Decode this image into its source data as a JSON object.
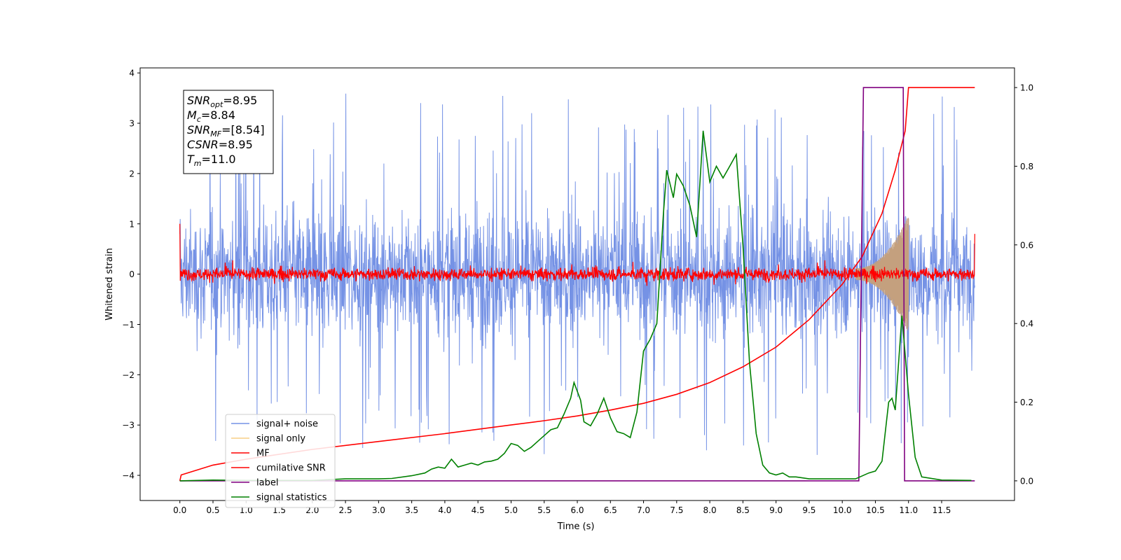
{
  "chart_data": {
    "type": "line",
    "xlabel": "Time (s)",
    "ylabel": "Whitened strain",
    "xlim": [
      -0.6,
      12.6
    ],
    "ylim_left": [
      -4.5,
      4.1
    ],
    "ylim_right": [
      -0.05,
      1.05
    ],
    "x_ticks": [
      "0.0",
      "0.5",
      "1.0",
      "1.5",
      "2.0",
      "2.5",
      "3.0",
      "3.5",
      "4.0",
      "4.5",
      "5.0",
      "5.5",
      "6.0",
      "6.5",
      "7.0",
      "7.5",
      "8.0",
      "8.5",
      "9.0",
      "9.5",
      "10.0",
      "10.5",
      "11.0",
      "11.5"
    ],
    "y_left_ticks": [
      "4",
      "3",
      "2",
      "1",
      "0",
      "−1",
      "−2",
      "−3",
      "−4"
    ],
    "y_right_ticks": [
      "1.0",
      "0.8",
      "0.6",
      "0.4",
      "0.2",
      "0.0"
    ],
    "legend_position": "lower-left",
    "colors": {
      "signal_noise": "#7592e5",
      "signal_only": "#f8cf85",
      "mf": "#ff0000",
      "cumulative_snr": "#ff0000",
      "label": "#800080",
      "signal_statistics": "#008000",
      "overlap": "#c4a07e"
    },
    "series": [
      {
        "name": "signal+ noise",
        "axis": "left",
        "type": "noise",
        "x_range": [
          0.0,
          12.0
        ],
        "amplitude_typical": 1.0,
        "amplitude_peak": 3.7
      },
      {
        "name": "signal only",
        "axis": "left",
        "type": "chirp",
        "x_range": [
          10.2,
          11.0
        ],
        "amplitude_end": 1.05
      },
      {
        "name": "MF",
        "axis": "left",
        "type": "noise",
        "x_range": [
          0.0,
          12.0
        ],
        "amplitude_typical": 0.15,
        "edge_values": [
          1.0,
          0.8
        ]
      },
      {
        "name": "cumilative SNR",
        "axis": "right",
        "x": [
          0.0,
          0.02,
          0.5,
          1.0,
          2.0,
          3.0,
          4.0,
          5.0,
          5.5,
          6.0,
          6.5,
          7.0,
          7.5,
          8.0,
          8.5,
          9.0,
          9.5,
          10.0,
          10.3,
          10.6,
          10.8,
          10.95,
          11.0,
          12.0
        ],
        "values": [
          0.0,
          0.015,
          0.04,
          0.055,
          0.08,
          0.1,
          0.12,
          0.142,
          0.153,
          0.165,
          0.18,
          0.197,
          0.22,
          0.25,
          0.29,
          0.34,
          0.41,
          0.5,
          0.57,
          0.68,
          0.79,
          0.89,
          1.0,
          1.0
        ]
      },
      {
        "name": "label",
        "axis": "right",
        "x": [
          0.0,
          10.25,
          10.32,
          10.92,
          10.94,
          12.0
        ],
        "values": [
          0.0,
          0.0,
          1.0,
          1.0,
          0.0,
          0.0
        ]
      },
      {
        "name": "signal statistics",
        "axis": "right",
        "x": [
          0.0,
          0.5,
          1.0,
          2.0,
          2.5,
          3.0,
          3.2,
          3.5,
          3.7,
          3.8,
          3.9,
          4.0,
          4.1,
          4.2,
          4.3,
          4.4,
          4.5,
          4.6,
          4.7,
          4.8,
          4.9,
          5.0,
          5.1,
          5.2,
          5.3,
          5.4,
          5.5,
          5.6,
          5.7,
          5.8,
          5.9,
          5.95,
          6.05,
          6.1,
          6.2,
          6.3,
          6.4,
          6.5,
          6.6,
          6.7,
          6.8,
          6.9,
          7.0,
          7.1,
          7.2,
          7.3,
          7.35,
          7.45,
          7.5,
          7.6,
          7.7,
          7.8,
          7.9,
          8.0,
          8.1,
          8.2,
          8.3,
          8.4,
          8.5,
          8.6,
          8.7,
          8.8,
          8.9,
          9.0,
          9.1,
          9.2,
          9.3,
          9.5,
          10.0,
          10.2,
          10.4,
          10.5,
          10.6,
          10.7,
          10.75,
          10.8,
          10.9,
          11.0,
          11.1,
          11.2,
          11.5,
          11.95
        ],
        "values": [
          0.0,
          0.002,
          0.001,
          0.001,
          0.005,
          0.005,
          0.006,
          0.013,
          0.02,
          0.03,
          0.035,
          0.032,
          0.055,
          0.035,
          0.04,
          0.045,
          0.04,
          0.048,
          0.05,
          0.055,
          0.07,
          0.095,
          0.09,
          0.075,
          0.085,
          0.1,
          0.115,
          0.13,
          0.135,
          0.17,
          0.21,
          0.25,
          0.205,
          0.15,
          0.14,
          0.17,
          0.21,
          0.16,
          0.125,
          0.12,
          0.11,
          0.175,
          0.33,
          0.36,
          0.4,
          0.68,
          0.79,
          0.72,
          0.78,
          0.75,
          0.7,
          0.62,
          0.89,
          0.76,
          0.8,
          0.77,
          0.8,
          0.83,
          0.6,
          0.3,
          0.12,
          0.04,
          0.02,
          0.015,
          0.02,
          0.01,
          0.01,
          0.005,
          0.005,
          0.005,
          0.02,
          0.025,
          0.05,
          0.2,
          0.21,
          0.18,
          0.42,
          0.22,
          0.06,
          0.01,
          0.002,
          0.001
        ]
      }
    ],
    "annotation": {
      "lines": [
        {
          "sym": "SNR",
          "sub": "opt",
          "value": "=8.95"
        },
        {
          "sym": "M",
          "sub": "c",
          "value": "=8.84"
        },
        {
          "sym": "SNR",
          "sub": "MF",
          "value": "=[8.54]"
        },
        {
          "sym": "CSNR",
          "sub": "",
          "value": "=8.95"
        },
        {
          "sym": "T",
          "sub": "m",
          "value": "=11.0"
        }
      ]
    },
    "legend": {
      "items": [
        {
          "label": "signal+ noise",
          "color": "#7592e5"
        },
        {
          "label": "signal only",
          "color": "#f8cf85"
        },
        {
          "label": "MF",
          "color": "#ff0000"
        },
        {
          "label": "cumilative SNR",
          "color": "#ff0000"
        },
        {
          "label": "label",
          "color": "#800080"
        },
        {
          "label": "signal statistics",
          "color": "#008000"
        }
      ]
    }
  }
}
